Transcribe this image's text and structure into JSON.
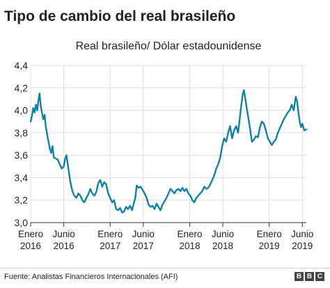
{
  "chart_data": {
    "type": "line",
    "title": "Tipo de cambio del real brasileño",
    "subtitle": "Real brasileño/ Dólar estadounidense",
    "x_ticks": [
      {
        "t": 0,
        "line1": "Enero",
        "line2": "2016"
      },
      {
        "t": 5,
        "line1": "Junio",
        "line2": "2016"
      },
      {
        "t": 12,
        "line1": "Enero",
        "line2": "2017"
      },
      {
        "t": 17,
        "line1": "Junio",
        "line2": "2017"
      },
      {
        "t": 24,
        "line1": "Enero",
        "line2": "2018"
      },
      {
        "t": 29,
        "line1": "Junio",
        "line2": "2018"
      },
      {
        "t": 36,
        "line1": "Enero",
        "line2": "2019"
      },
      {
        "t": 41,
        "line1": "Junio",
        "line2": "2019"
      }
    ],
    "y_ticks": [
      "4,4",
      "4,2",
      "4,0",
      "3,8",
      "3,6",
      "3,4",
      "3,2",
      "3,0"
    ],
    "y_tick_values": [
      4.4,
      4.2,
      4.0,
      3.8,
      3.6,
      3.4,
      3.2,
      3.0
    ],
    "ylim": [
      3.0,
      4.4
    ],
    "xlim": [
      0,
      41.6
    ],
    "grid": true,
    "series": [
      {
        "color": "#1380A1",
        "points": [
          [
            0.0,
            3.9
          ],
          [
            0.2,
            3.95
          ],
          [
            0.4,
            4.02
          ],
          [
            0.6,
            3.98
          ],
          [
            0.8,
            4.05
          ],
          [
            1.0,
            4.0
          ],
          [
            1.2,
            4.1
          ],
          [
            1.35,
            4.15
          ],
          [
            1.5,
            4.05
          ],
          [
            1.7,
            3.98
          ],
          [
            1.9,
            3.92
          ],
          [
            2.1,
            3.96
          ],
          [
            2.3,
            3.85
          ],
          [
            2.5,
            3.78
          ],
          [
            2.7,
            3.72
          ],
          [
            2.9,
            3.66
          ],
          [
            3.1,
            3.62
          ],
          [
            3.3,
            3.68
          ],
          [
            3.5,
            3.58
          ],
          [
            3.8,
            3.57
          ],
          [
            4.1,
            3.56
          ],
          [
            4.4,
            3.52
          ],
          [
            4.7,
            3.48
          ],
          [
            5.0,
            3.5
          ],
          [
            5.2,
            3.57
          ],
          [
            5.4,
            3.6
          ],
          [
            5.6,
            3.52
          ],
          [
            5.8,
            3.44
          ],
          [
            6.0,
            3.36
          ],
          [
            6.3,
            3.28
          ],
          [
            6.6,
            3.24
          ],
          [
            6.9,
            3.22
          ],
          [
            7.2,
            3.26
          ],
          [
            7.5,
            3.24
          ],
          [
            7.8,
            3.2
          ],
          [
            8.1,
            3.18
          ],
          [
            8.4,
            3.22
          ],
          [
            8.7,
            3.25
          ],
          [
            9.0,
            3.3
          ],
          [
            9.3,
            3.26
          ],
          [
            9.6,
            3.24
          ],
          [
            9.9,
            3.27
          ],
          [
            10.2,
            3.35
          ],
          [
            10.5,
            3.38
          ],
          [
            10.8,
            3.32
          ],
          [
            11.1,
            3.36
          ],
          [
            11.4,
            3.34
          ],
          [
            11.7,
            3.26
          ],
          [
            12.0,
            3.22
          ],
          [
            12.3,
            3.18
          ],
          [
            12.6,
            3.2
          ],
          [
            12.9,
            3.12
          ],
          [
            13.2,
            3.11
          ],
          [
            13.5,
            3.13
          ],
          [
            13.8,
            3.09
          ],
          [
            14.1,
            3.1
          ],
          [
            14.4,
            3.14
          ],
          [
            14.7,
            3.12
          ],
          [
            15.0,
            3.15
          ],
          [
            15.3,
            3.11
          ],
          [
            15.6,
            3.18
          ],
          [
            15.8,
            3.22
          ],
          [
            16.0,
            3.33
          ],
          [
            16.3,
            3.31
          ],
          [
            16.6,
            3.32
          ],
          [
            16.9,
            3.29
          ],
          [
            17.2,
            3.26
          ],
          [
            17.5,
            3.22
          ],
          [
            17.8,
            3.16
          ],
          [
            18.1,
            3.14
          ],
          [
            18.4,
            3.15
          ],
          [
            18.7,
            3.12
          ],
          [
            19.0,
            3.17
          ],
          [
            19.3,
            3.14
          ],
          [
            19.6,
            3.11
          ],
          [
            19.9,
            3.16
          ],
          [
            20.2,
            3.19
          ],
          [
            20.5,
            3.22
          ],
          [
            20.8,
            3.26
          ],
          [
            21.1,
            3.3
          ],
          [
            21.4,
            3.28
          ],
          [
            21.7,
            3.26
          ],
          [
            22.0,
            3.29
          ],
          [
            22.3,
            3.3
          ],
          [
            22.6,
            3.28
          ],
          [
            22.9,
            3.31
          ],
          [
            23.2,
            3.28
          ],
          [
            23.5,
            3.3
          ],
          [
            23.8,
            3.26
          ],
          [
            24.1,
            3.24
          ],
          [
            24.4,
            3.2
          ],
          [
            24.7,
            3.18
          ],
          [
            25.0,
            3.22
          ],
          [
            25.3,
            3.24
          ],
          [
            25.6,
            3.26
          ],
          [
            25.9,
            3.28
          ],
          [
            26.2,
            3.32
          ],
          [
            26.5,
            3.3
          ],
          [
            26.8,
            3.31
          ],
          [
            27.1,
            3.34
          ],
          [
            27.4,
            3.38
          ],
          [
            27.7,
            3.42
          ],
          [
            28.0,
            3.48
          ],
          [
            28.3,
            3.52
          ],
          [
            28.6,
            3.58
          ],
          [
            28.9,
            3.68
          ],
          [
            29.2,
            3.75
          ],
          [
            29.5,
            3.72
          ],
          [
            29.8,
            3.8
          ],
          [
            30.1,
            3.86
          ],
          [
            30.4,
            3.75
          ],
          [
            30.7,
            3.82
          ],
          [
            31.0,
            3.86
          ],
          [
            31.3,
            3.8
          ],
          [
            31.6,
            3.95
          ],
          [
            31.8,
            4.05
          ],
          [
            32.0,
            4.14
          ],
          [
            32.2,
            4.18
          ],
          [
            32.4,
            4.1
          ],
          [
            32.6,
            4.02
          ],
          [
            32.8,
            3.95
          ],
          [
            33.0,
            3.88
          ],
          [
            33.2,
            3.8
          ],
          [
            33.4,
            3.72
          ],
          [
            33.7,
            3.74
          ],
          [
            34.0,
            3.77
          ],
          [
            34.3,
            3.76
          ],
          [
            34.6,
            3.85
          ],
          [
            34.9,
            3.9
          ],
          [
            35.2,
            3.88
          ],
          [
            35.5,
            3.82
          ],
          [
            35.8,
            3.75
          ],
          [
            36.1,
            3.72
          ],
          [
            36.4,
            3.69
          ],
          [
            36.7,
            3.72
          ],
          [
            37.0,
            3.74
          ],
          [
            37.3,
            3.8
          ],
          [
            37.6,
            3.84
          ],
          [
            37.9,
            3.88
          ],
          [
            38.2,
            3.92
          ],
          [
            38.5,
            3.95
          ],
          [
            38.8,
            3.98
          ],
          [
            39.1,
            4.0
          ],
          [
            39.4,
            4.05
          ],
          [
            39.7,
            4.0
          ],
          [
            40.0,
            4.12
          ],
          [
            40.2,
            4.08
          ],
          [
            40.4,
            3.98
          ],
          [
            40.6,
            3.9
          ],
          [
            40.8,
            3.85
          ],
          [
            41.0,
            3.88
          ],
          [
            41.3,
            3.82
          ],
          [
            41.6,
            3.83
          ]
        ]
      }
    ]
  },
  "source": "Fuente: Analistas Financieros Internacionales (AFI)",
  "logo": {
    "letters": [
      "B",
      "B",
      "C"
    ]
  }
}
